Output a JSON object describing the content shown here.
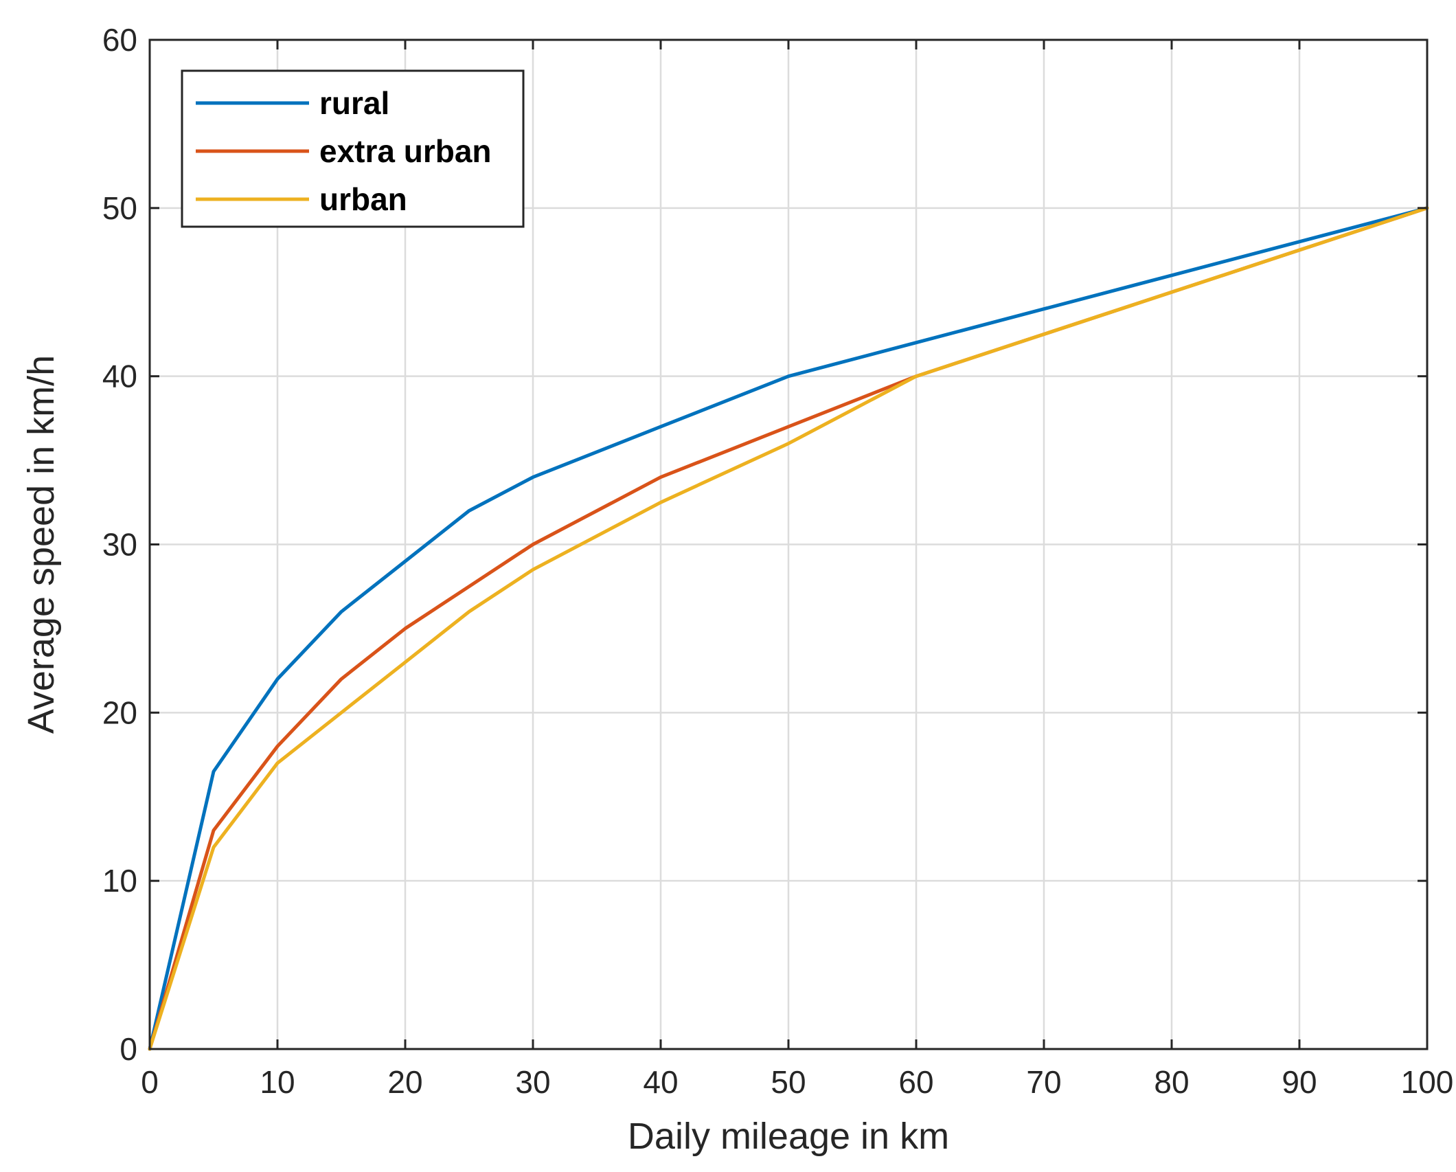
{
  "chart_data": {
    "type": "line",
    "title": "",
    "xlabel": "Daily mileage in km",
    "ylabel": "Average speed in km/h",
    "xlim": [
      0,
      100
    ],
    "ylim": [
      0,
      60
    ],
    "xticks": [
      "0",
      "10",
      "20",
      "30",
      "40",
      "50",
      "60",
      "70",
      "80",
      "90",
      "100"
    ],
    "yticks": [
      "0",
      "10",
      "20",
      "30",
      "40",
      "50",
      "60"
    ],
    "grid": true,
    "legend_position": "top-left",
    "series": [
      {
        "name": "rural",
        "color": "#0072BD",
        "x": [
          0,
          5,
          10,
          15,
          20,
          25,
          30,
          40,
          50,
          60,
          70,
          80,
          90,
          100
        ],
        "y": [
          0,
          16.5,
          22,
          26,
          29,
          32,
          34,
          37,
          40,
          42,
          44,
          46,
          48,
          50
        ]
      },
      {
        "name": "extra urban",
        "color": "#D95319",
        "x": [
          0,
          5,
          10,
          15,
          20,
          25,
          30,
          40,
          50,
          60,
          70,
          80,
          90,
          100
        ],
        "y": [
          0,
          13,
          18,
          22,
          25,
          27.5,
          30,
          34,
          37,
          40,
          42.5,
          45,
          47.5,
          50
        ]
      },
      {
        "name": "urban",
        "color": "#EDB120",
        "x": [
          0,
          5,
          10,
          15,
          20,
          25,
          30,
          40,
          50,
          60,
          70,
          80,
          90,
          100
        ],
        "y": [
          0,
          12,
          17,
          20,
          23,
          26,
          28.5,
          32.5,
          36,
          40,
          42.5,
          45,
          47.5,
          50
        ]
      }
    ]
  }
}
